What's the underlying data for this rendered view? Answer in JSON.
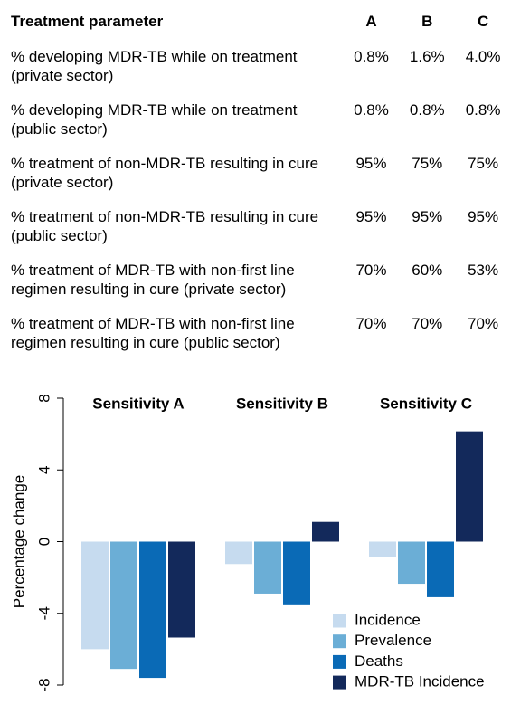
{
  "table": {
    "header": [
      "Treatment parameter",
      "A",
      "B",
      "C"
    ],
    "rows": [
      [
        "% developing MDR-TB while on treatment (private sector)",
        "0.8%",
        "1.6%",
        "4.0%"
      ],
      [
        "% developing MDR-TB while on treatment (public sector)",
        "0.8%",
        "0.8%",
        "0.8%"
      ],
      [
        "% treatment of non-MDR-TB resulting in cure (private sector)",
        "95%",
        "75%",
        "75%"
      ],
      [
        "% treatment of non-MDR-TB resulting in cure (public sector)",
        "95%",
        "95%",
        "95%"
      ],
      [
        "% treatment of MDR-TB with non-first line regimen resulting in cure (private sector)",
        "70%",
        "60%",
        "53%"
      ],
      [
        "% treatment of MDR-TB with non-first line regimen resulting in cure (public sector)",
        "70%",
        "70%",
        "70%"
      ]
    ]
  },
  "chart_data": {
    "type": "bar",
    "ylabel": "Percentage change",
    "categories": [
      "Sensitivity A",
      "Sensitivity B",
      "Sensitivity C"
    ],
    "series": [
      {
        "name": "Incidence",
        "color": "#c6dbef",
        "values": [
          -6.0,
          -1.25,
          -0.85
        ]
      },
      {
        "name": "Prevalence",
        "color": "#6baed6",
        "values": [
          -7.1,
          -2.9,
          -2.35
        ]
      },
      {
        "name": "Deaths",
        "color": "#0a6ab6",
        "values": [
          -7.6,
          -3.5,
          -3.1
        ]
      },
      {
        "name": "MDR-TB Incidence",
        "color": "#13295b",
        "values": [
          -5.35,
          1.1,
          6.15
        ]
      }
    ],
    "ylim": [
      -8,
      8
    ],
    "yticks": [
      -8,
      -4,
      0,
      4,
      8
    ]
  }
}
